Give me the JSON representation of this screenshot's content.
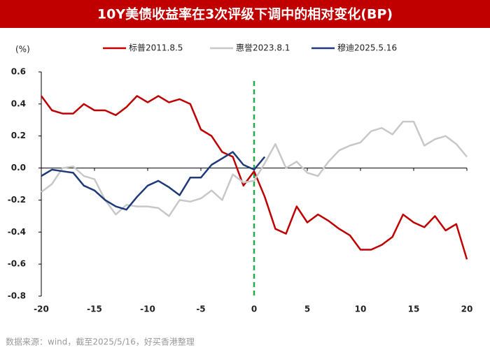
{
  "chart_data": {
    "type": "line",
    "title": "10Y美债收益率在3次评级下调中的相对变化(BP)",
    "y_label": "(%)",
    "source": "数据来源：wind，截至2025/5/16，好买香港整理",
    "x": [
      -20,
      -19,
      -18,
      -17,
      -16,
      -15,
      -14,
      -13,
      -12,
      -11,
      -10,
      -9,
      -8,
      -7,
      -6,
      -5,
      -4,
      -3,
      -2,
      -1,
      0,
      1,
      2,
      3,
      4,
      5,
      6,
      7,
      8,
      9,
      10,
      11,
      12,
      13,
      14,
      15,
      16,
      17,
      18,
      19,
      20
    ],
    "series": [
      {
        "name": "标普2011.8.5",
        "color": "#c00000",
        "values": [
          0.45,
          0.36,
          0.34,
          0.34,
          0.4,
          0.36,
          0.36,
          0.33,
          0.38,
          0.45,
          0.41,
          0.45,
          0.41,
          0.43,
          0.4,
          0.24,
          0.2,
          0.1,
          0.07,
          -0.11,
          -0.02,
          -0.18,
          -0.38,
          -0.41,
          -0.24,
          -0.34,
          -0.29,
          -0.33,
          -0.38,
          -0.42,
          -0.51,
          -0.51,
          -0.48,
          -0.43,
          -0.29,
          -0.34,
          -0.37,
          -0.3,
          -0.39,
          -0.35,
          -0.57
        ]
      },
      {
        "name": "惠誉2023.8.1",
        "color": "#c8c8c8",
        "values": [
          -0.15,
          -0.1,
          0.0,
          0.01,
          -0.05,
          -0.07,
          -0.2,
          -0.29,
          -0.23,
          -0.24,
          -0.24,
          -0.25,
          -0.3,
          -0.2,
          -0.21,
          -0.19,
          -0.14,
          -0.2,
          -0.04,
          -0.09,
          -0.08,
          0.03,
          0.15,
          0.0,
          0.04,
          -0.03,
          -0.05,
          0.04,
          0.11,
          0.14,
          0.16,
          0.23,
          0.25,
          0.21,
          0.29,
          0.29,
          0.14,
          0.18,
          0.2,
          0.15,
          0.07
        ]
      },
      {
        "name": "穆迪2025.5.16",
        "color": "#1f3a7a",
        "values": [
          -0.05,
          -0.01,
          -0.02,
          -0.03,
          -0.11,
          -0.14,
          -0.2,
          -0.24,
          -0.26,
          -0.18,
          -0.11,
          -0.08,
          -0.12,
          -0.17,
          -0.06,
          -0.06,
          0.02,
          0.06,
          0.1,
          0.02,
          -0.01,
          0.07,
          null,
          null,
          null,
          null,
          null,
          null,
          null,
          null,
          null,
          null,
          null,
          null,
          null,
          null,
          null,
          null,
          null,
          null,
          null
        ]
      }
    ],
    "xlim": [
      -20,
      20
    ],
    "xticks": [
      -20,
      -15,
      -10,
      -5,
      0,
      5,
      10,
      15,
      20
    ],
    "ylim": [
      -0.8,
      0.6
    ],
    "yticks": [
      0.6,
      0.4,
      0.2,
      {
        "value": 0,
        "label": "0.0"
      },
      -0.2,
      -0.4,
      -0.6,
      -0.8
    ],
    "reference_line": {
      "x": 0,
      "color": "#22aa44"
    }
  }
}
